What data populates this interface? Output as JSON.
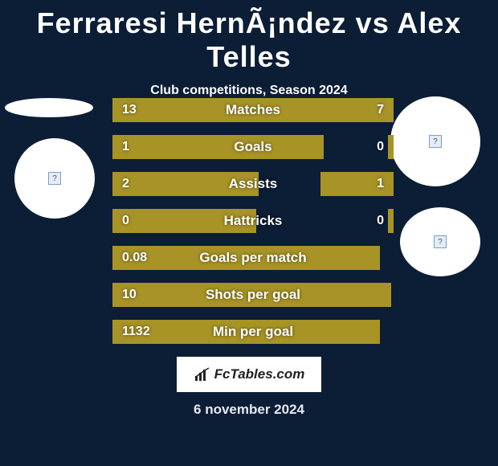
{
  "title": "Ferraresi HernÃ¡ndez vs Alex Telles",
  "subtitle": "Club competitions, Season 2024",
  "date": "6 november 2024",
  "brand": "FcTables.com",
  "bar_color": "#a89426",
  "bar_area_width": 350,
  "stats": [
    {
      "label": "Matches",
      "left_val": "13",
      "right_val": "7",
      "left_pct": 0.65,
      "right_pct": 0.35
    },
    {
      "label": "Goals",
      "left_val": "1",
      "right_val": "0",
      "left_pct": 0.75,
      "right_pct": 0.02
    },
    {
      "label": "Assists",
      "left_val": "2",
      "right_val": "1",
      "left_pct": 0.52,
      "right_pct": 0.26
    },
    {
      "label": "Hattricks",
      "left_val": "0",
      "right_val": "0",
      "left_pct": 0.51,
      "right_pct": 0.02
    },
    {
      "label": "Goals per match",
      "left_val": "0.08",
      "right_val": "",
      "left_pct": 0.95,
      "right_pct": 0.0
    },
    {
      "label": "Shots per goal",
      "left_val": "10",
      "right_val": "",
      "left_pct": 0.99,
      "right_pct": 0.0
    },
    {
      "label": "Min per goal",
      "left_val": "1132",
      "right_val": "",
      "left_pct": 0.95,
      "right_pct": 0.0
    }
  ]
}
